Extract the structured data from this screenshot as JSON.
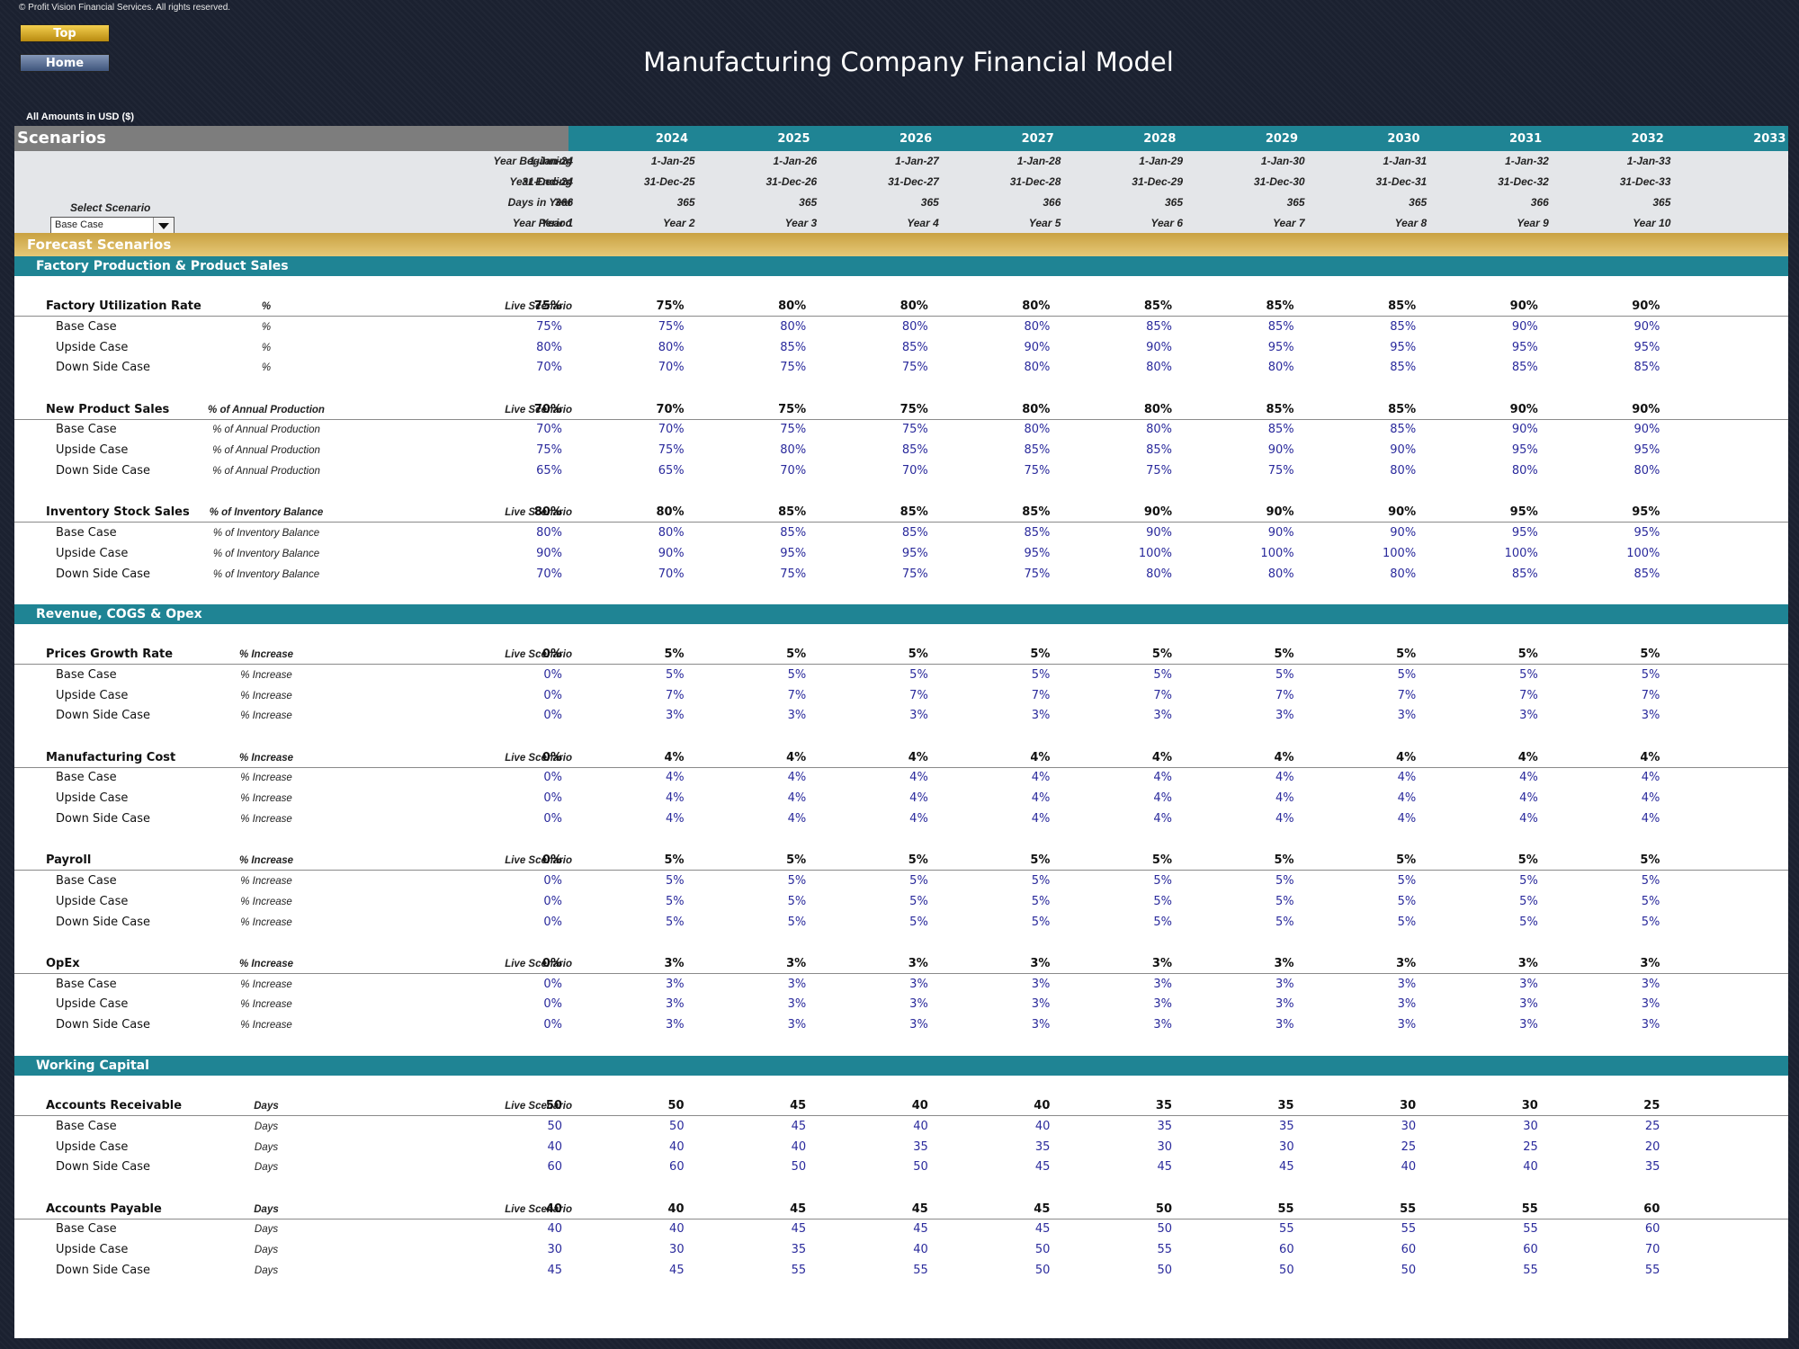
{
  "copyright": "© Profit Vision Financial Services. All rights reserved.",
  "buttons": {
    "top": "Top",
    "home": "Home"
  },
  "title": "Manufacturing Company Financial Model",
  "currency_note": "All Amounts in  USD ($)",
  "scenarios_label": "Scenarios",
  "years": [
    "2024",
    "2025",
    "2026",
    "2027",
    "2028",
    "2029",
    "2030",
    "2031",
    "2032",
    "2033"
  ],
  "header_rows": [
    {
      "label": "Year Beginning",
      "values": [
        "1-Jan-24",
        "1-Jan-25",
        "1-Jan-26",
        "1-Jan-27",
        "1-Jan-28",
        "1-Jan-29",
        "1-Jan-30",
        "1-Jan-31",
        "1-Jan-32",
        "1-Jan-33"
      ]
    },
    {
      "label": "Year Ending",
      "values": [
        "31-Dec-24",
        "31-Dec-25",
        "31-Dec-26",
        "31-Dec-27",
        "31-Dec-28",
        "31-Dec-29",
        "31-Dec-30",
        "31-Dec-31",
        "31-Dec-32",
        "31-Dec-33"
      ]
    },
    {
      "label": "Days in Year",
      "values": [
        "366",
        "365",
        "365",
        "365",
        "366",
        "365",
        "365",
        "365",
        "366",
        "365"
      ]
    },
    {
      "label": "Year Period",
      "values": [
        "Year 1",
        "Year 2",
        "Year 3",
        "Year 4",
        "Year 5",
        "Year 6",
        "Year 7",
        "Year 8",
        "Year 9",
        "Year 10"
      ]
    }
  ],
  "select_scenario": {
    "label": "Select Scenario",
    "value": "Base Case"
  },
  "forecast_label": "Forecast Scenarios",
  "live_label": "Live Scenario",
  "case_labels": [
    "Base Case",
    "Upside Case",
    "Down Side Case"
  ],
  "sections": [
    {
      "title": "Factory Production & Product Sales",
      "groups": [
        {
          "name": "Factory Utilization Rate",
          "unit": "%",
          "live": [
            "75%",
            "75%",
            "80%",
            "80%",
            "80%",
            "85%",
            "85%",
            "85%",
            "90%",
            "90%"
          ],
          "cases": [
            [
              "75%",
              "75%",
              "80%",
              "80%",
              "80%",
              "85%",
              "85%",
              "85%",
              "90%",
              "90%"
            ],
            [
              "80%",
              "80%",
              "85%",
              "85%",
              "90%",
              "90%",
              "95%",
              "95%",
              "95%",
              "95%"
            ],
            [
              "70%",
              "70%",
              "75%",
              "75%",
              "80%",
              "80%",
              "80%",
              "85%",
              "85%",
              "85%"
            ]
          ]
        },
        {
          "name": "New Product Sales",
          "unit": "% of Annual Production",
          "live": [
            "70%",
            "70%",
            "75%",
            "75%",
            "80%",
            "80%",
            "85%",
            "85%",
            "90%",
            "90%"
          ],
          "cases": [
            [
              "70%",
              "70%",
              "75%",
              "75%",
              "80%",
              "80%",
              "85%",
              "85%",
              "90%",
              "90%"
            ],
            [
              "75%",
              "75%",
              "80%",
              "85%",
              "85%",
              "85%",
              "90%",
              "90%",
              "95%",
              "95%"
            ],
            [
              "65%",
              "65%",
              "70%",
              "70%",
              "75%",
              "75%",
              "75%",
              "80%",
              "80%",
              "80%"
            ]
          ]
        },
        {
          "name": "Inventory Stock Sales",
          "unit": "% of Inventory Balance",
          "live": [
            "80%",
            "80%",
            "85%",
            "85%",
            "85%",
            "90%",
            "90%",
            "90%",
            "95%",
            "95%"
          ],
          "cases": [
            [
              "80%",
              "80%",
              "85%",
              "85%",
              "85%",
              "90%",
              "90%",
              "90%",
              "95%",
              "95%"
            ],
            [
              "90%",
              "90%",
              "95%",
              "95%",
              "95%",
              "100%",
              "100%",
              "100%",
              "100%",
              "100%"
            ],
            [
              "70%",
              "70%",
              "75%",
              "75%",
              "75%",
              "80%",
              "80%",
              "80%",
              "85%",
              "85%"
            ]
          ]
        }
      ]
    },
    {
      "title": "Revenue, COGS & Opex",
      "groups": [
        {
          "name": "Prices Growth Rate",
          "unit": "% Increase",
          "live": [
            "0%",
            "5%",
            "5%",
            "5%",
            "5%",
            "5%",
            "5%",
            "5%",
            "5%",
            "5%"
          ],
          "cases": [
            [
              "0%",
              "5%",
              "5%",
              "5%",
              "5%",
              "5%",
              "5%",
              "5%",
              "5%",
              "5%"
            ],
            [
              "0%",
              "7%",
              "7%",
              "7%",
              "7%",
              "7%",
              "7%",
              "7%",
              "7%",
              "7%"
            ],
            [
              "0%",
              "3%",
              "3%",
              "3%",
              "3%",
              "3%",
              "3%",
              "3%",
              "3%",
              "3%"
            ]
          ]
        },
        {
          "name": "Manufacturing Cost",
          "unit": "% Increase",
          "live": [
            "0%",
            "4%",
            "4%",
            "4%",
            "4%",
            "4%",
            "4%",
            "4%",
            "4%",
            "4%"
          ],
          "cases": [
            [
              "0%",
              "4%",
              "4%",
              "4%",
              "4%",
              "4%",
              "4%",
              "4%",
              "4%",
              "4%"
            ],
            [
              "0%",
              "4%",
              "4%",
              "4%",
              "4%",
              "4%",
              "4%",
              "4%",
              "4%",
              "4%"
            ],
            [
              "0%",
              "4%",
              "4%",
              "4%",
              "4%",
              "4%",
              "4%",
              "4%",
              "4%",
              "4%"
            ]
          ]
        },
        {
          "name": "Payroll",
          "unit": "% Increase",
          "live": [
            "0%",
            "5%",
            "5%",
            "5%",
            "5%",
            "5%",
            "5%",
            "5%",
            "5%",
            "5%"
          ],
          "cases": [
            [
              "0%",
              "5%",
              "5%",
              "5%",
              "5%",
              "5%",
              "5%",
              "5%",
              "5%",
              "5%"
            ],
            [
              "0%",
              "5%",
              "5%",
              "5%",
              "5%",
              "5%",
              "5%",
              "5%",
              "5%",
              "5%"
            ],
            [
              "0%",
              "5%",
              "5%",
              "5%",
              "5%",
              "5%",
              "5%",
              "5%",
              "5%",
              "5%"
            ]
          ]
        },
        {
          "name": "OpEx",
          "unit": "% Increase",
          "live": [
            "0%",
            "3%",
            "3%",
            "3%",
            "3%",
            "3%",
            "3%",
            "3%",
            "3%",
            "3%"
          ],
          "cases": [
            [
              "0%",
              "3%",
              "3%",
              "3%",
              "3%",
              "3%",
              "3%",
              "3%",
              "3%",
              "3%"
            ],
            [
              "0%",
              "3%",
              "3%",
              "3%",
              "3%",
              "3%",
              "3%",
              "3%",
              "3%",
              "3%"
            ],
            [
              "0%",
              "3%",
              "3%",
              "3%",
              "3%",
              "3%",
              "3%",
              "3%",
              "3%",
              "3%"
            ]
          ]
        }
      ]
    },
    {
      "title": "Working Capital",
      "groups": [
        {
          "name": "Accounts Receivable",
          "unit": "Days",
          "live": [
            "50",
            "50",
            "45",
            "40",
            "40",
            "35",
            "35",
            "30",
            "30",
            "25"
          ],
          "cases": [
            [
              "50",
              "50",
              "45",
              "40",
              "40",
              "35",
              "35",
              "30",
              "30",
              "25"
            ],
            [
              "40",
              "40",
              "40",
              "35",
              "35",
              "30",
              "30",
              "25",
              "25",
              "20"
            ],
            [
              "60",
              "60",
              "50",
              "50",
              "45",
              "45",
              "45",
              "40",
              "40",
              "35"
            ]
          ]
        },
        {
          "name": "Accounts Payable",
          "unit": "Days",
          "live": [
            "40",
            "40",
            "45",
            "45",
            "45",
            "50",
            "55",
            "55",
            "55",
            "60"
          ],
          "cases": [
            [
              "40",
              "40",
              "45",
              "45",
              "45",
              "50",
              "55",
              "55",
              "55",
              "60"
            ],
            [
              "30",
              "30",
              "35",
              "40",
              "50",
              "55",
              "60",
              "60",
              "60",
              "70"
            ],
            [
              "45",
              "45",
              "55",
              "55",
              "50",
              "50",
              "50",
              "50",
              "55",
              "55"
            ]
          ]
        }
      ]
    }
  ]
}
